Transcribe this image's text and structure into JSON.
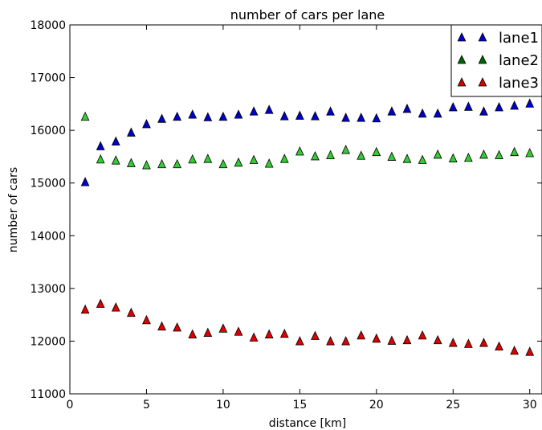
{
  "chart_data": {
    "type": "scatter",
    "title": "number of cars per lane",
    "xlabel": "distance [km]",
    "ylabel": "number of cars",
    "xlim": [
      0,
      30.8
    ],
    "ylim": [
      11000,
      18000
    ],
    "xticks": [
      0,
      5,
      10,
      15,
      20,
      25,
      30
    ],
    "yticks": [
      11000,
      12000,
      13000,
      14000,
      15000,
      16000,
      17000,
      18000
    ],
    "grid": false,
    "legend_position": "top-right",
    "marker": "triangle",
    "x": [
      1,
      2,
      3,
      4,
      5,
      6,
      7,
      8,
      9,
      10,
      11,
      12,
      13,
      14,
      15,
      16,
      17,
      18,
      19,
      20,
      21,
      22,
      23,
      24,
      25,
      26,
      27,
      28,
      29,
      30
    ],
    "series": [
      {
        "name": "lane1",
        "legend_color": "#0000cc",
        "color": "#0000cc",
        "values": [
          15010,
          15690,
          15780,
          15950,
          16110,
          16210,
          16250,
          16290,
          16240,
          16250,
          16290,
          16350,
          16380,
          16260,
          16270,
          16260,
          16350,
          16230,
          16230,
          16220,
          16350,
          16400,
          16310,
          16310,
          16430,
          16440,
          16350,
          16430,
          16460,
          16500
        ]
      },
      {
        "name": "lane2",
        "legend_color": "#006400",
        "color": "#33cc33",
        "values": [
          16250,
          15440,
          15420,
          15370,
          15330,
          15350,
          15350,
          15440,
          15450,
          15350,
          15380,
          15430,
          15360,
          15450,
          15590,
          15500,
          15520,
          15620,
          15510,
          15580,
          15490,
          15450,
          15430,
          15530,
          15460,
          15470,
          15530,
          15520,
          15580,
          15560
        ]
      },
      {
        "name": "lane3",
        "legend_color": "#cc0000",
        "color": "#dd0000",
        "values": [
          12590,
          12700,
          12630,
          12530,
          12390,
          12270,
          12250,
          12120,
          12150,
          12230,
          12170,
          12060,
          12120,
          12130,
          11990,
          12090,
          11990,
          11990,
          12100,
          12040,
          12000,
          12010,
          12100,
          12010,
          11960,
          11940,
          11960,
          11890,
          11810,
          11790
        ]
      }
    ]
  }
}
